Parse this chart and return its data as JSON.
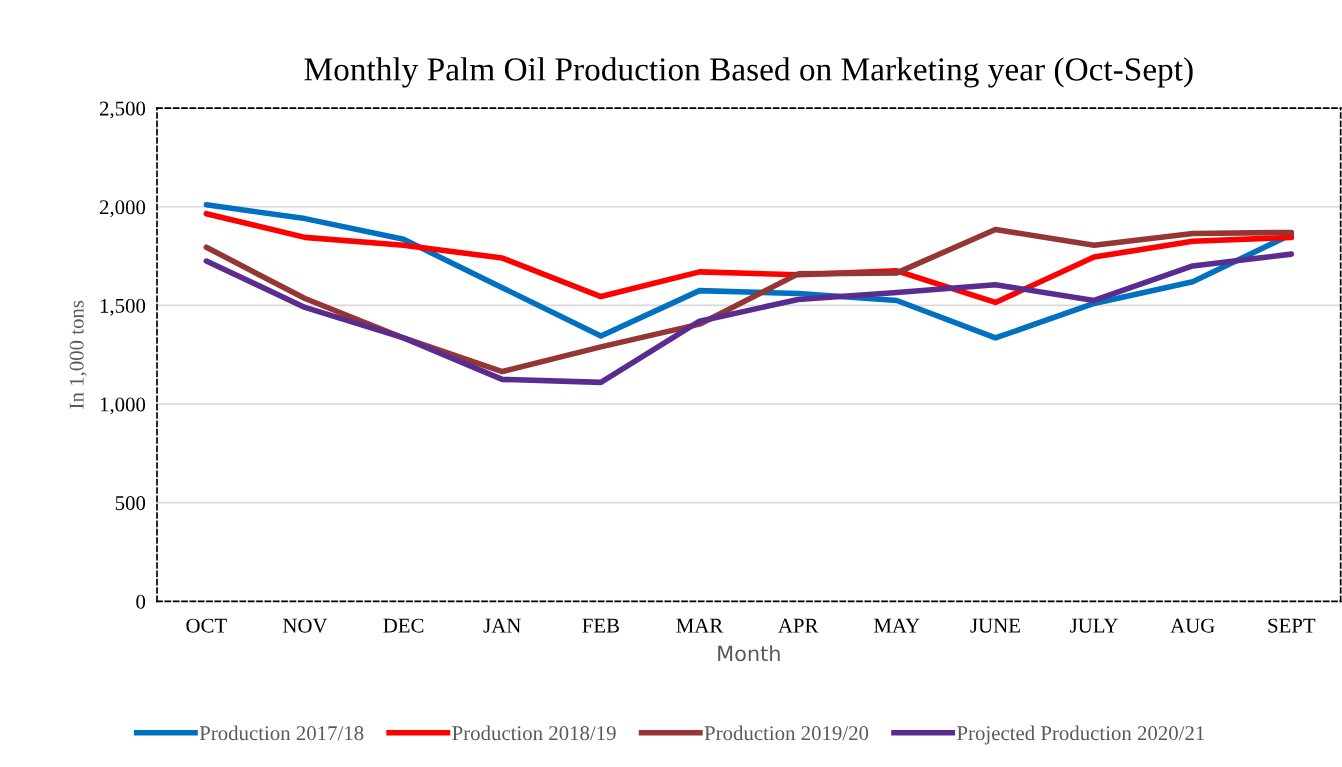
{
  "chart_data": {
    "type": "line",
    "title": "Monthly Palm Oil Production Based on Marketing year (Oct-Sept)",
    "xlabel": "Month",
    "ylabel": "In 1,000 tons",
    "categories": [
      "OCT",
      "NOV",
      "DEC",
      "JAN",
      "FEB",
      "MAR",
      "APR",
      "MAY",
      "JUNE",
      "JULY",
      "AUG",
      "SEPT"
    ],
    "series": [
      {
        "name": "Production 2017/18",
        "color": "#0070c0",
        "values": [
          2010,
          1940,
          1835,
          1590,
          1345,
          1575,
          1560,
          1525,
          1335,
          1510,
          1620,
          1860
        ]
      },
      {
        "name": "Production 2018/19",
        "color": "#ff0000",
        "values": [
          1965,
          1845,
          1805,
          1740,
          1545,
          1670,
          1655,
          1675,
          1515,
          1745,
          1825,
          1845
        ]
      },
      {
        "name": "Production 2019/20",
        "color": "#943634",
        "values": [
          1795,
          1535,
          1335,
          1165,
          1290,
          1405,
          1660,
          1665,
          1885,
          1805,
          1865,
          1870
        ]
      },
      {
        "name": "Projected Production 2020/21",
        "color": "#5b2c8f",
        "values": [
          1725,
          1490,
          1335,
          1125,
          1110,
          1420,
          1530,
          1565,
          1605,
          1525,
          1700,
          1760
        ]
      }
    ],
    "ylim": [
      0,
      2500
    ],
    "yticks": [
      {
        "value": 0,
        "label": "0"
      },
      {
        "value": 500,
        "label": "500"
      },
      {
        "value": 1000,
        "label": "1,000"
      },
      {
        "value": 1500,
        "label": "1,500"
      },
      {
        "value": 2000,
        "label": "2,000"
      },
      {
        "value": 2500,
        "label": "2,500"
      }
    ],
    "grid": "y",
    "legend": "bottom",
    "marker": "none",
    "line_style": "solid"
  }
}
